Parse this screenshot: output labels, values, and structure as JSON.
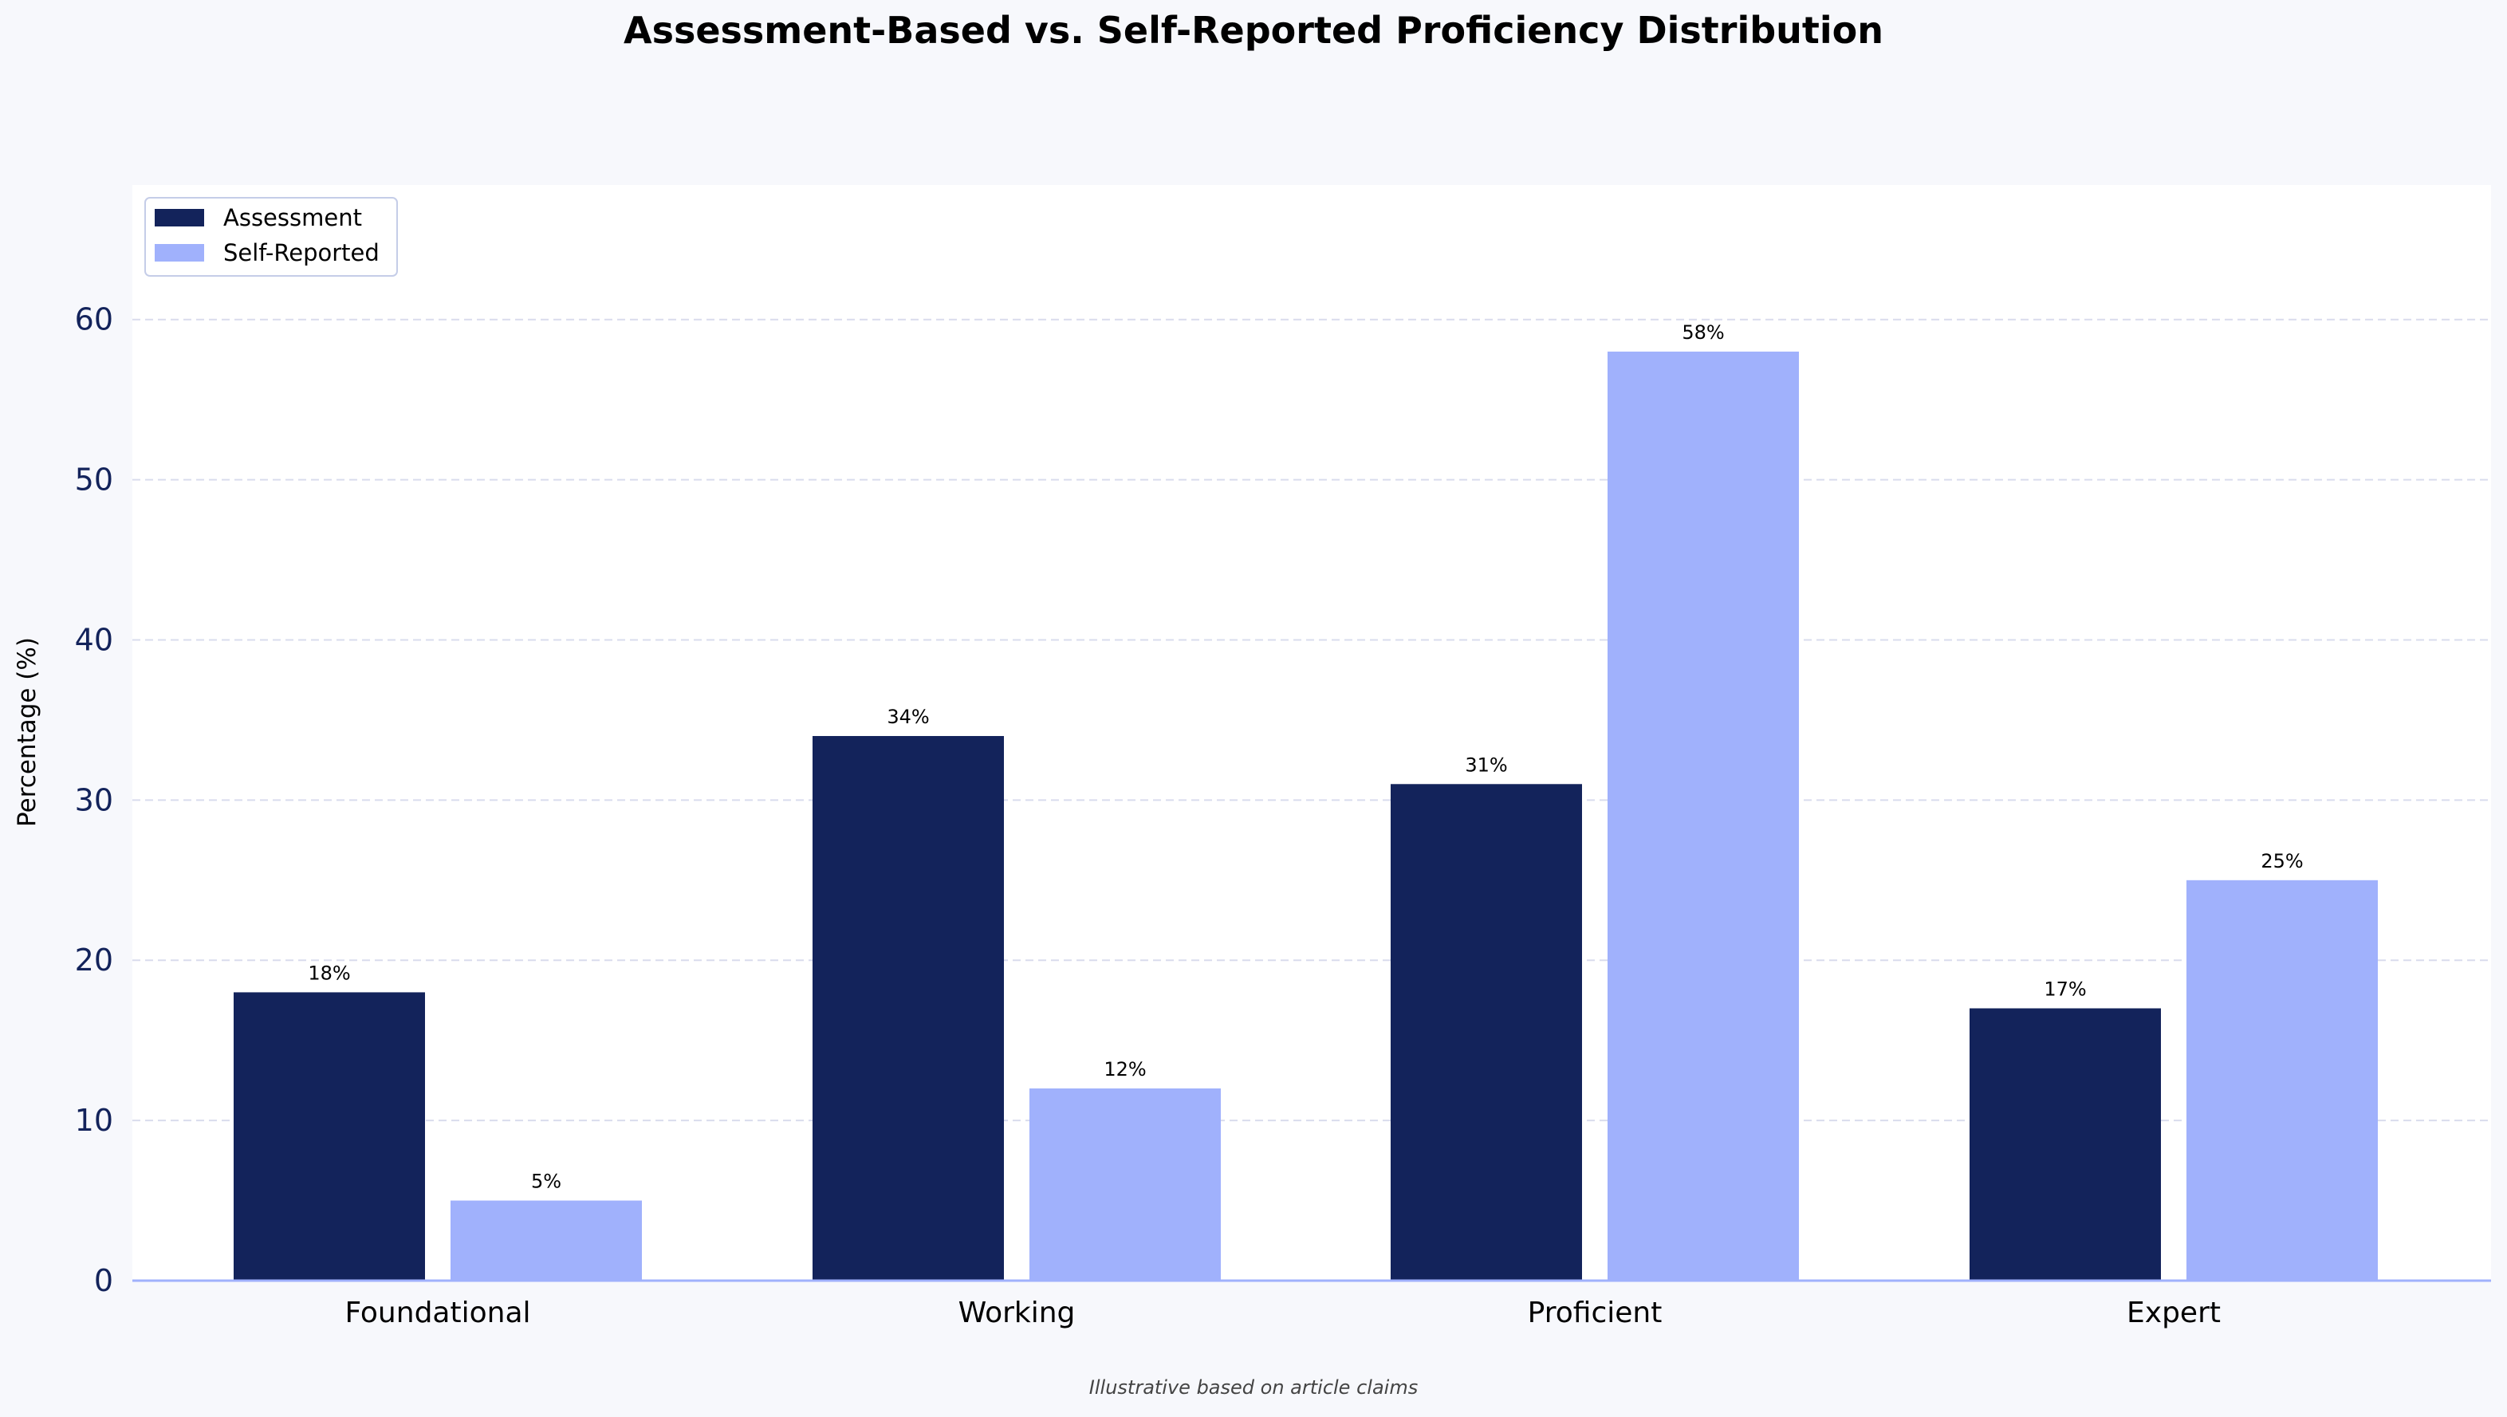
{
  "chart_data": {
    "type": "bar",
    "title": "Assessment-Based vs. Self-Reported Proficiency Distribution",
    "ylabel": "Percentage (%)",
    "xlabel": "",
    "footnote": "Illustrative based on article claims",
    "categories": [
      "Foundational",
      "Working",
      "Proficient",
      "Expert"
    ],
    "series": [
      {
        "name": "Assessment",
        "values": [
          18,
          34,
          31,
          17
        ],
        "color": "#13235b"
      },
      {
        "name": "Self-Reported",
        "values": [
          5,
          12,
          58,
          25
        ],
        "color": "#a0b1fc"
      }
    ],
    "value_suffix": "%",
    "bold_value_labels": [
      [
        1,
        2
      ]
    ],
    "ylim": [
      0,
      68.4
    ],
    "yticks": [
      0,
      10,
      20,
      30,
      40,
      50,
      60
    ],
    "grid": "y-dashed",
    "legend_position": "top-left"
  },
  "colors": {
    "page_background": "#f7f8fc",
    "plot_background": "#ffffff",
    "grid": "#d9dced",
    "axis_line": "#a0b1fc",
    "tick_text": "#13235b"
  }
}
